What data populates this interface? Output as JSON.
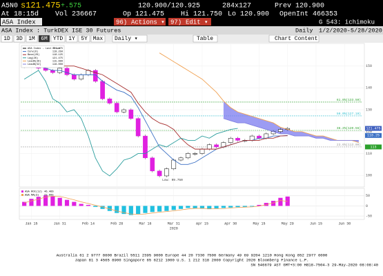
{
  "quote": {
    "ticker": "A5N0",
    "last": "s121.475",
    "change": "+.575",
    "bid_ask": "120.900/120.925",
    "size": "284x127",
    "prev": "Prev 120.900",
    "time": "At 18:15d",
    "volume": "Vol 236667",
    "open": "Op 121.475",
    "high": "Hi 121.750",
    "low": "Lo 120.900",
    "open_interest": "OpenInt 466353"
  },
  "command_bar": {
    "security": "A5A Index",
    "actions_num": "96)",
    "actions": "Actions ▾",
    "edit_num": "97)",
    "edit": "Edit ▾",
    "function": "G 543: ichimoku"
  },
  "info_bar": {
    "name": "ASA Index : TurkDEX ISE 30 Futures",
    "period": "Daily",
    "range": "1/2/2020-5/28/2020"
  },
  "toolbar": {
    "tabs": [
      "1D",
      "3D",
      "1M",
      "6M",
      "YTD",
      "1Y",
      "5Y",
      "Max"
    ],
    "selected": "6M",
    "frequency": "Daily ▾",
    "table": "Table",
    "chart_content": "Chart Content"
  },
  "chart_data": {
    "type": "ichimoku",
    "categories": [
      null,
      "Jan 15",
      null,
      null,
      null,
      "Jan 31",
      null,
      null,
      null,
      "Feb 14",
      null,
      null,
      null,
      "Feb 28",
      null,
      null,
      null,
      "Mar 16",
      null,
      null,
      null,
      "Mar 31",
      null,
      null,
      null,
      "Apr 15",
      null,
      null,
      null,
      "Apr 30",
      null,
      null,
      null,
      "May 15",
      null,
      null,
      null,
      "May 29",
      null,
      null,
      null,
      "Jun 15",
      null,
      null,
      null,
      "Jun 30",
      null,
      null
    ],
    "year_label": "2020",
    "ylim": [
      95,
      160
    ],
    "yticks": [
      100,
      110,
      120,
      130,
      140,
      150
    ],
    "series": [
      {
        "name": "ASA Index - Last Price",
        "last": "121.475",
        "color": "#000000",
        "style": "candle",
        "values": [
          150,
          151,
          149,
          148,
          147,
          149,
          146,
          144,
          146,
          148,
          143,
          135,
          133,
          129,
          130,
          126,
          118,
          108,
          102,
          99.75,
          103,
          107,
          108,
          110,
          110,
          112,
          114,
          113,
          115,
          117,
          116,
          116,
          118,
          117,
          119,
          120,
          121,
          121.475,
          null,
          null,
          null,
          null,
          null,
          null,
          null,
          null,
          null,
          null
        ]
      },
      {
        "name": "Conv(9)",
        "last": "118.250",
        "color": "#3a6fc4",
        "style": "line",
        "values": [
          150,
          150,
          150,
          149,
          148,
          148,
          147,
          146,
          146,
          146,
          146,
          143,
          141,
          139,
          138,
          136,
          131,
          125,
          119,
          113,
          110,
          107,
          105,
          105,
          106,
          108,
          110,
          112,
          113,
          114,
          115,
          116,
          116,
          117,
          117,
          118,
          118,
          118.25,
          null,
          null,
          null,
          null,
          null,
          null,
          null,
          null,
          null,
          null
        ]
      },
      {
        "name": "Base(26)",
        "last": "118.125",
        "color": "#a52a2a",
        "style": "line",
        "values": [
          151,
          151,
          151,
          151,
          150,
          150,
          150,
          150,
          149,
          148,
          147,
          146,
          144,
          142,
          140,
          138,
          133,
          129,
          126,
          124,
          123,
          121,
          117,
          114,
          112,
          112,
          112,
          112,
          113,
          114,
          115,
          116,
          116,
          116,
          117,
          117,
          118,
          118.125,
          null,
          null,
          null,
          null,
          null,
          null,
          null,
          null,
          null,
          null
        ]
      },
      {
        "name": "Lag(26)",
        "last": "121.475",
        "color": "#2a9d9d",
        "style": "line",
        "values": [
          144,
          146,
          148,
          143,
          135,
          133,
          129,
          130,
          126,
          118,
          108,
          102,
          99.75,
          103,
          107,
          108,
          110,
          110,
          112,
          114,
          113,
          115,
          117,
          116,
          116,
          118,
          117,
          119,
          120,
          121,
          121.475,
          null,
          null,
          null,
          null,
          null,
          null,
          null,
          null,
          null,
          null,
          null,
          null,
          null,
          null,
          null,
          null,
          null
        ]
      },
      {
        "name": "LeadA(26)",
        "last": "115.000",
        "color": "#f0a050",
        "style": "line",
        "values": [
          null,
          null,
          null,
          null,
          null,
          null,
          null,
          null,
          null,
          null,
          null,
          null,
          null,
          null,
          null,
          null,
          null,
          null,
          null,
          156,
          154,
          152,
          150,
          148,
          146,
          144,
          141,
          138,
          134,
          131,
          129,
          128,
          127,
          126,
          125,
          124,
          122,
          121,
          120,
          120,
          119,
          118,
          118,
          117,
          116,
          116,
          116,
          115
        ]
      },
      {
        "name": "LeadB(52)",
        "last": "116.000",
        "color": "#8080e0",
        "style": "line",
        "values": [
          null,
          null,
          null,
          null,
          null,
          null,
          null,
          null,
          null,
          null,
          null,
          null,
          null,
          null,
          null,
          null,
          null,
          null,
          null,
          null,
          null,
          null,
          null,
          null,
          null,
          null,
          null,
          null,
          126,
          125,
          124,
          124,
          123,
          122,
          121,
          120,
          119,
          119,
          118,
          118,
          118,
          117,
          117,
          116,
          116,
          116,
          116,
          116
        ]
      }
    ],
    "cloud_color": "#7b7bef",
    "fib": [
      {
        "value": 133.5,
        "label": "61.8%(133.50)",
        "color": "#2ca02c"
      },
      {
        "value": 127.19,
        "label": "50.0%(127.19)",
        "color": "#30c0d0"
      },
      {
        "value": 120.56,
        "label": "38.2%(120.56)",
        "color": "#2ca02c"
      },
      {
        "value": 113,
        "label": "23.6%(113.00)",
        "color": "#999999"
      }
    ],
    "value_boxes": [
      {
        "value": 121.475,
        "color": "#3f5fbf"
      },
      {
        "value": 118.25,
        "color": "#3a6fc4"
      },
      {
        "value": 113,
        "color": "#2ca02c"
      }
    ],
    "annotation": {
      "text": "Low: 99.750",
      "value": 99.75,
      "index": 19
    },
    "lower_panel": {
      "ylim": [
        -60,
        80
      ],
      "yticks": [
        -50,
        0,
        50
      ],
      "series": [
        {
          "name": "ASA ROC(12)",
          "last": "46.466",
          "color": "#e020e0",
          "neg_color": "#20c0e0",
          "style": "histogram",
          "values": [
            20,
            35,
            45,
            52,
            48,
            40,
            30,
            20,
            10,
            5,
            -5,
            -15,
            -25,
            -35,
            -40,
            -45,
            -40,
            -35,
            -30,
            -28,
            -25,
            -20,
            -15,
            -10,
            -12,
            -14,
            -16,
            -12,
            -10,
            -8,
            -6,
            -5,
            -3,
            5,
            15,
            25,
            40,
            46.466,
            null,
            null,
            null,
            null,
            null,
            null,
            null,
            null,
            null,
            null
          ]
        },
        {
          "name": "ASA MA(3)",
          "last": "22.005",
          "color": "#f0a050",
          "style": "line",
          "values": [
            15,
            25,
            33,
            44,
            48,
            47,
            39,
            30,
            20,
            12,
            3,
            -5,
            -15,
            -25,
            -33,
            -40,
            -42,
            -40,
            -35,
            -31,
            -28,
            -24,
            -20,
            -15,
            -12,
            -12,
            -14,
            -14,
            -13,
            -10,
            -8,
            -6,
            -5,
            -1,
            6,
            15,
            27,
            22.005,
            null,
            null,
            null,
            null,
            null,
            null,
            null,
            null,
            null,
            null
          ]
        }
      ]
    }
  },
  "footer": [
    "Australia 61 2 9777 8600 Brazil 5511 2395 9000 Europe 44 20 7330 7500 Germany 49 69 9204 1210 Hong Kong 852 2977 6000",
    "Japan 81 3 4565 8900      Singapore 65 6212 1000      U.S. 1 212 318 2000      Copyright 2020 Bloomberg Finance L.P.",
    "SN 546679 AST  GMT+3:00 H818-7504-3 29-May-2020 08:08:40"
  ]
}
